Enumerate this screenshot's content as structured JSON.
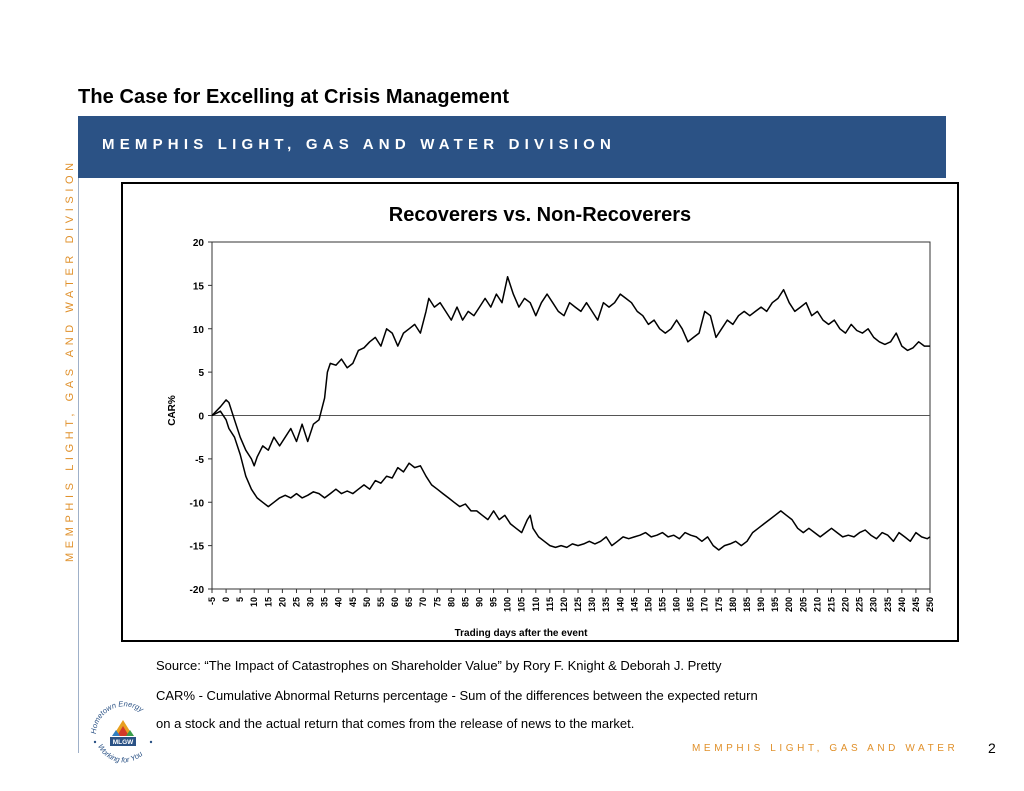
{
  "slide": {
    "title": "The Case for Excelling at Crisis Management",
    "banner": "MEMPHIS LIGHT, GAS AND WATER DIVISION",
    "side_text": "MEMPHIS LIGHT, GAS AND WATER DIVISION",
    "source": "Source: “The Impact of Catastrophes on Shareholder Value” by Rory F. Knight & Deborah J. Pretty",
    "definition_line1": "CAR% - Cumulative Abnormal Returns percentage - Sum of the differences between the expected return",
    "definition_line2": "on a stock and the actual return that comes from the release of news to the market.",
    "footer": "MEMPHIS LIGHT, GAS AND WATER",
    "page_number": "2",
    "logo": {
      "top_text": "Hometown Energy",
      "center_text": "MLGW",
      "bottom_text": "Working for You"
    }
  },
  "colors": {
    "banner": "#2b5285",
    "accent_orange": "#e0902a",
    "line": "#000000"
  },
  "chart_data": {
    "type": "line",
    "title": "Recoverers vs. Non-Recoverers",
    "xlabel": "Trading days after the event",
    "ylabel": "CAR%",
    "xlim": [
      -5,
      250
    ],
    "ylim": [
      -20,
      20
    ],
    "x_ticks": [
      -5,
      0,
      5,
      10,
      15,
      20,
      25,
      30,
      35,
      40,
      45,
      50,
      55,
      60,
      65,
      70,
      75,
      80,
      85,
      90,
      95,
      100,
      105,
      110,
      115,
      120,
      125,
      130,
      135,
      140,
      145,
      150,
      155,
      160,
      165,
      170,
      175,
      180,
      185,
      190,
      195,
      200,
      205,
      210,
      215,
      220,
      225,
      230,
      235,
      240,
      245,
      250
    ],
    "y_ticks": [
      20,
      15,
      10,
      5,
      0,
      -5,
      -10,
      -15,
      -20
    ],
    "zero_line": true,
    "series": [
      {
        "values": [
          [
            -5,
            0
          ],
          [
            -2,
            1
          ],
          [
            0,
            1.8
          ],
          [
            1,
            1.5
          ],
          [
            3,
            -0.5
          ],
          [
            5,
            -2.5
          ],
          [
            7,
            -4
          ],
          [
            9,
            -5
          ],
          [
            10,
            -5.8
          ],
          [
            11,
            -4.8
          ],
          [
            13,
            -3.5
          ],
          [
            15,
            -4
          ],
          [
            17,
            -2.5
          ],
          [
            19,
            -3.5
          ],
          [
            21,
            -2.5
          ],
          [
            23,
            -1.5
          ],
          [
            25,
            -3
          ],
          [
            27,
            -1
          ],
          [
            29,
            -3
          ],
          [
            31,
            -1
          ],
          [
            33,
            -0.5
          ],
          [
            35,
            2
          ],
          [
            36,
            5
          ],
          [
            37,
            6
          ],
          [
            39,
            5.8
          ],
          [
            41,
            6.5
          ],
          [
            43,
            5.5
          ],
          [
            45,
            6
          ],
          [
            47,
            7.5
          ],
          [
            49,
            7.8
          ],
          [
            51,
            8.5
          ],
          [
            53,
            9
          ],
          [
            55,
            8
          ],
          [
            57,
            10
          ],
          [
            59,
            9.5
          ],
          [
            61,
            8
          ],
          [
            63,
            9.5
          ],
          [
            65,
            10
          ],
          [
            67,
            10.5
          ],
          [
            69,
            9.5
          ],
          [
            71,
            12
          ],
          [
            72,
            13.5
          ],
          [
            74,
            12.5
          ],
          [
            76,
            13
          ],
          [
            78,
            12
          ],
          [
            80,
            11
          ],
          [
            82,
            12.5
          ],
          [
            84,
            11
          ],
          [
            86,
            12
          ],
          [
            88,
            11.5
          ],
          [
            90,
            12.5
          ],
          [
            92,
            13.5
          ],
          [
            94,
            12.5
          ],
          [
            96,
            14
          ],
          [
            98,
            13
          ],
          [
            100,
            16
          ],
          [
            102,
            14
          ],
          [
            104,
            12.5
          ],
          [
            106,
            13.5
          ],
          [
            108,
            13
          ],
          [
            110,
            11.5
          ],
          [
            112,
            13
          ],
          [
            114,
            14
          ],
          [
            116,
            13
          ],
          [
            118,
            12
          ],
          [
            120,
            11.5
          ],
          [
            122,
            13
          ],
          [
            124,
            12.5
          ],
          [
            126,
            12
          ],
          [
            128,
            13
          ],
          [
            130,
            12
          ],
          [
            132,
            11
          ],
          [
            134,
            13
          ],
          [
            136,
            12.5
          ],
          [
            138,
            13
          ],
          [
            140,
            14
          ],
          [
            142,
            13.5
          ],
          [
            144,
            13
          ],
          [
            146,
            12
          ],
          [
            148,
            11.5
          ],
          [
            150,
            10.5
          ],
          [
            152,
            11
          ],
          [
            154,
            10
          ],
          [
            156,
            9.5
          ],
          [
            158,
            10
          ],
          [
            160,
            11
          ],
          [
            162,
            10
          ],
          [
            164,
            8.5
          ],
          [
            166,
            9
          ],
          [
            168,
            9.5
          ],
          [
            170,
            12
          ],
          [
            172,
            11.5
          ],
          [
            174,
            9
          ],
          [
            176,
            10
          ],
          [
            178,
            11
          ],
          [
            180,
            10.5
          ],
          [
            182,
            11.5
          ],
          [
            184,
            12
          ],
          [
            186,
            11.5
          ],
          [
            188,
            12
          ],
          [
            190,
            12.5
          ],
          [
            192,
            12
          ],
          [
            194,
            13
          ],
          [
            196,
            13.5
          ],
          [
            198,
            14.5
          ],
          [
            200,
            13
          ],
          [
            202,
            12
          ],
          [
            204,
            12.5
          ],
          [
            206,
            13
          ],
          [
            208,
            11.5
          ],
          [
            210,
            12
          ],
          [
            212,
            11
          ],
          [
            214,
            10.5
          ],
          [
            216,
            11
          ],
          [
            218,
            10
          ],
          [
            220,
            9.5
          ],
          [
            222,
            10.5
          ],
          [
            224,
            9.8
          ],
          [
            226,
            9.5
          ],
          [
            228,
            10
          ],
          [
            230,
            9
          ],
          [
            232,
            8.5
          ],
          [
            234,
            8.2
          ],
          [
            236,
            8.5
          ],
          [
            238,
            9.5
          ],
          [
            240,
            8
          ],
          [
            242,
            7.5
          ],
          [
            244,
            7.8
          ],
          [
            246,
            8.5
          ],
          [
            248,
            8
          ],
          [
            250,
            8
          ]
        ]
      },
      {
        "values": [
          [
            -5,
            0
          ],
          [
            -2,
            0.5
          ],
          [
            0,
            -0.5
          ],
          [
            1,
            -1.5
          ],
          [
            3,
            -2.5
          ],
          [
            5,
            -4.5
          ],
          [
            7,
            -7
          ],
          [
            9,
            -8.5
          ],
          [
            11,
            -9.5
          ],
          [
            13,
            -10
          ],
          [
            15,
            -10.5
          ],
          [
            17,
            -10
          ],
          [
            19,
            -9.5
          ],
          [
            21,
            -9.2
          ],
          [
            23,
            -9.5
          ],
          [
            25,
            -9
          ],
          [
            27,
            -9.5
          ],
          [
            29,
            -9.2
          ],
          [
            31,
            -8.8
          ],
          [
            33,
            -9
          ],
          [
            35,
            -9.5
          ],
          [
            37,
            -9
          ],
          [
            39,
            -8.5
          ],
          [
            41,
            -9
          ],
          [
            43,
            -8.7
          ],
          [
            45,
            -9
          ],
          [
            47,
            -8.5
          ],
          [
            49,
            -8
          ],
          [
            51,
            -8.5
          ],
          [
            53,
            -7.5
          ],
          [
            55,
            -7.8
          ],
          [
            57,
            -7
          ],
          [
            59,
            -7.2
          ],
          [
            61,
            -6
          ],
          [
            63,
            -6.5
          ],
          [
            65,
            -5.5
          ],
          [
            67,
            -6
          ],
          [
            69,
            -5.8
          ],
          [
            71,
            -7
          ],
          [
            73,
            -8
          ],
          [
            75,
            -8.5
          ],
          [
            77,
            -9
          ],
          [
            79,
            -9.5
          ],
          [
            81,
            -10
          ],
          [
            83,
            -10.5
          ],
          [
            85,
            -10.2
          ],
          [
            87,
            -11
          ],
          [
            89,
            -11
          ],
          [
            91,
            -11.5
          ],
          [
            93,
            -12
          ],
          [
            95,
            -11
          ],
          [
            97,
            -12
          ],
          [
            99,
            -11.5
          ],
          [
            101,
            -12.5
          ],
          [
            103,
            -13
          ],
          [
            105,
            -13.5
          ],
          [
            107,
            -12
          ],
          [
            108,
            -11.5
          ],
          [
            109,
            -13
          ],
          [
            111,
            -14
          ],
          [
            113,
            -14.5
          ],
          [
            115,
            -15
          ],
          [
            117,
            -15.2
          ],
          [
            119,
            -15
          ],
          [
            121,
            -15.2
          ],
          [
            123,
            -14.8
          ],
          [
            125,
            -15
          ],
          [
            127,
            -14.8
          ],
          [
            129,
            -14.5
          ],
          [
            131,
            -14.8
          ],
          [
            133,
            -14.5
          ],
          [
            135,
            -14
          ],
          [
            137,
            -15
          ],
          [
            139,
            -14.5
          ],
          [
            141,
            -14
          ],
          [
            143,
            -14.2
          ],
          [
            145,
            -14
          ],
          [
            147,
            -13.8
          ],
          [
            149,
            -13.5
          ],
          [
            151,
            -14
          ],
          [
            153,
            -13.8
          ],
          [
            155,
            -13.5
          ],
          [
            157,
            -14
          ],
          [
            159,
            -13.8
          ],
          [
            161,
            -14.2
          ],
          [
            163,
            -13.5
          ],
          [
            165,
            -13.8
          ],
          [
            167,
            -14
          ],
          [
            169,
            -14.5
          ],
          [
            171,
            -14
          ],
          [
            173,
            -15
          ],
          [
            175,
            -15.5
          ],
          [
            177,
            -15
          ],
          [
            179,
            -14.8
          ],
          [
            181,
            -14.5
          ],
          [
            183,
            -15
          ],
          [
            185,
            -14.5
          ],
          [
            187,
            -13.5
          ],
          [
            189,
            -13
          ],
          [
            191,
            -12.5
          ],
          [
            193,
            -12
          ],
          [
            195,
            -11.5
          ],
          [
            197,
            -11
          ],
          [
            199,
            -11.5
          ],
          [
            201,
            -12
          ],
          [
            203,
            -13
          ],
          [
            205,
            -13.5
          ],
          [
            207,
            -13
          ],
          [
            209,
            -13.5
          ],
          [
            211,
            -14
          ],
          [
            213,
            -13.5
          ],
          [
            215,
            -13
          ],
          [
            217,
            -13.5
          ],
          [
            219,
            -14
          ],
          [
            221,
            -13.8
          ],
          [
            223,
            -14
          ],
          [
            225,
            -13.5
          ],
          [
            227,
            -13.2
          ],
          [
            229,
            -13.8
          ],
          [
            231,
            -14.2
          ],
          [
            233,
            -13.5
          ],
          [
            235,
            -13.8
          ],
          [
            237,
            -14.5
          ],
          [
            239,
            -13.5
          ],
          [
            241,
            -14
          ],
          [
            243,
            -14.5
          ],
          [
            245,
            -13.5
          ],
          [
            247,
            -14
          ],
          [
            249,
            -14.2
          ],
          [
            250,
            -14
          ]
        ]
      }
    ]
  }
}
